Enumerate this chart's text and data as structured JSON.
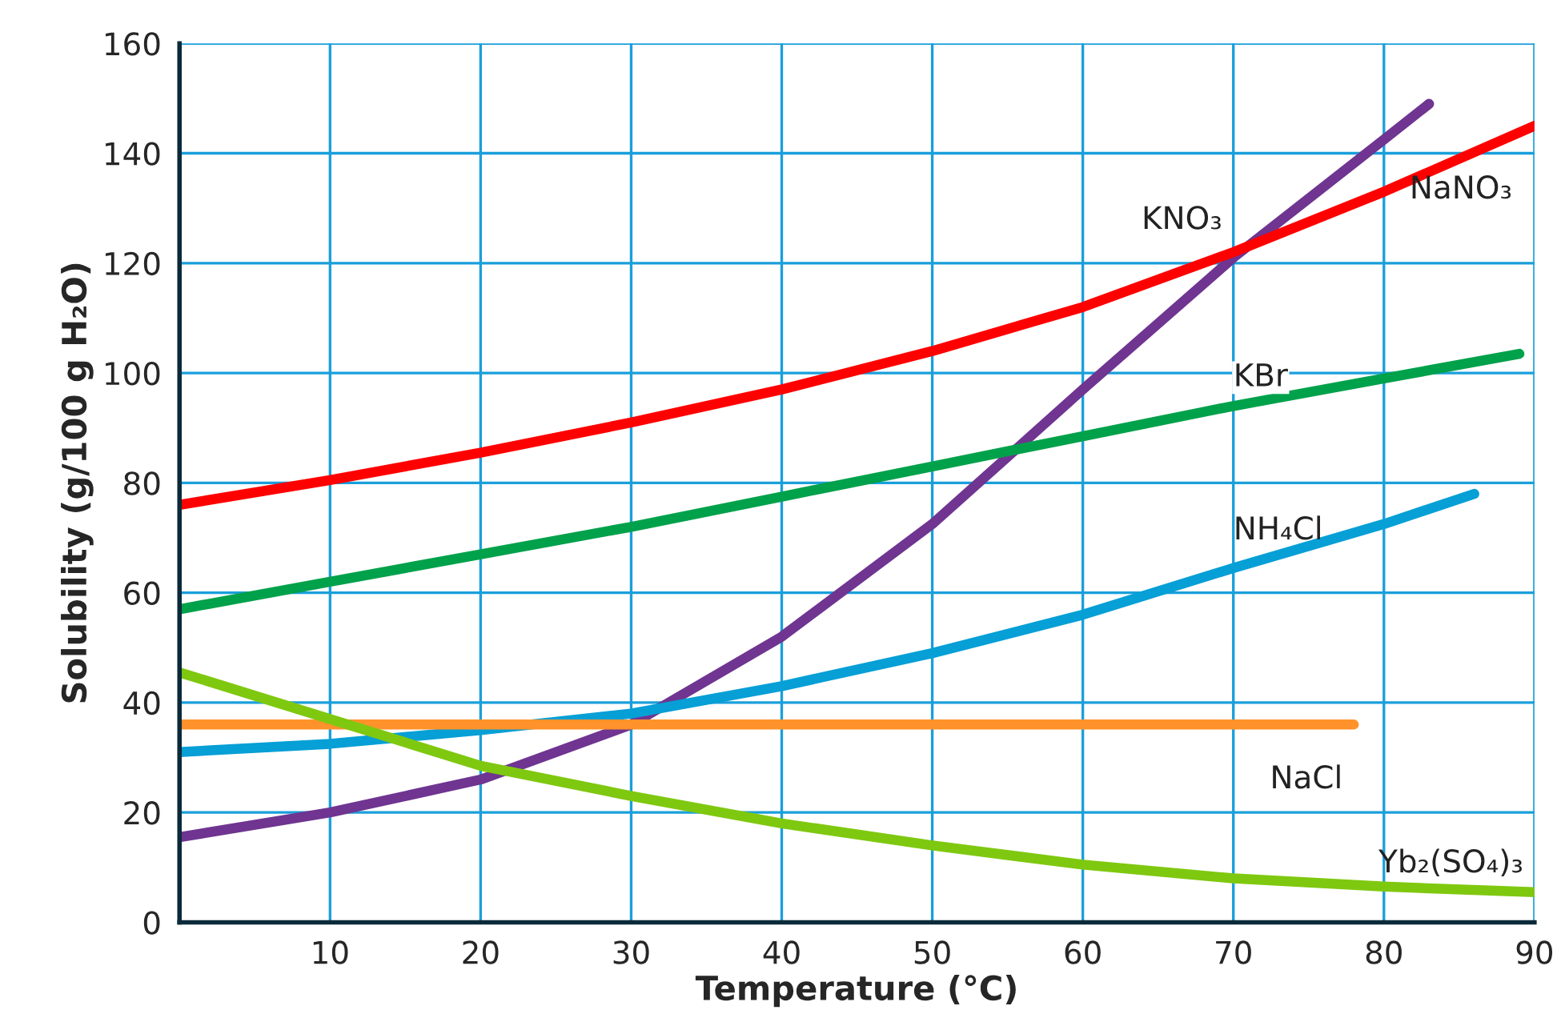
{
  "chart_data": {
    "type": "line",
    "xlabel": "Temperature (°C)",
    "ylabel": "Solubility (g/100 g H₂O)",
    "xlim": [
      0,
      90
    ],
    "ylim": [
      0,
      160
    ],
    "xticks": [
      10,
      20,
      30,
      40,
      50,
      60,
      70,
      80,
      90
    ],
    "yticks": [
      0,
      20,
      40,
      60,
      80,
      100,
      120,
      140,
      160
    ],
    "grid": true,
    "legend": false,
    "marker": "none",
    "line_style": "solid",
    "series": [
      {
        "name": "KNO₃",
        "color": "#6f3591",
        "x": [
          0,
          10,
          20,
          30,
          40,
          50,
          60,
          70,
          80,
          83
        ],
        "values": [
          15.5,
          20,
          26,
          36,
          52,
          72.5,
          97,
          121,
          142.5,
          149
        ]
      },
      {
        "name": "NaNO₃",
        "color": "#ff0000",
        "x": [
          0,
          10,
          20,
          30,
          40,
          50,
          60,
          70,
          80,
          90
        ],
        "values": [
          76,
          80.5,
          85.5,
          91,
          97,
          104,
          112,
          122,
          133,
          145
        ]
      },
      {
        "name": "KBr",
        "color": "#00a14b",
        "x": [
          0,
          10,
          20,
          30,
          40,
          50,
          60,
          70,
          80,
          89
        ],
        "values": [
          57,
          62,
          67,
          72,
          77.5,
          83,
          88.5,
          94,
          99,
          103.5
        ]
      },
      {
        "name": "NH₄Cl",
        "color": "#069fd6",
        "x": [
          0,
          10,
          20,
          30,
          40,
          50,
          60,
          70,
          80,
          86
        ],
        "values": [
          31,
          32.5,
          35,
          38,
          43,
          49,
          56,
          64.5,
          72.5,
          78
        ]
      },
      {
        "name": "NaCl",
        "color": "#ff922b",
        "x": [
          0,
          78
        ],
        "values": [
          36,
          36
        ]
      },
      {
        "name": "Yb₂(SO₄)₃",
        "color": "#7fc810",
        "x": [
          0,
          10,
          20,
          30,
          40,
          50,
          60,
          70,
          80,
          90
        ],
        "values": [
          45.5,
          37,
          28.5,
          23,
          18,
          14,
          10.5,
          8,
          6.5,
          5.5
        ]
      }
    ]
  }
}
